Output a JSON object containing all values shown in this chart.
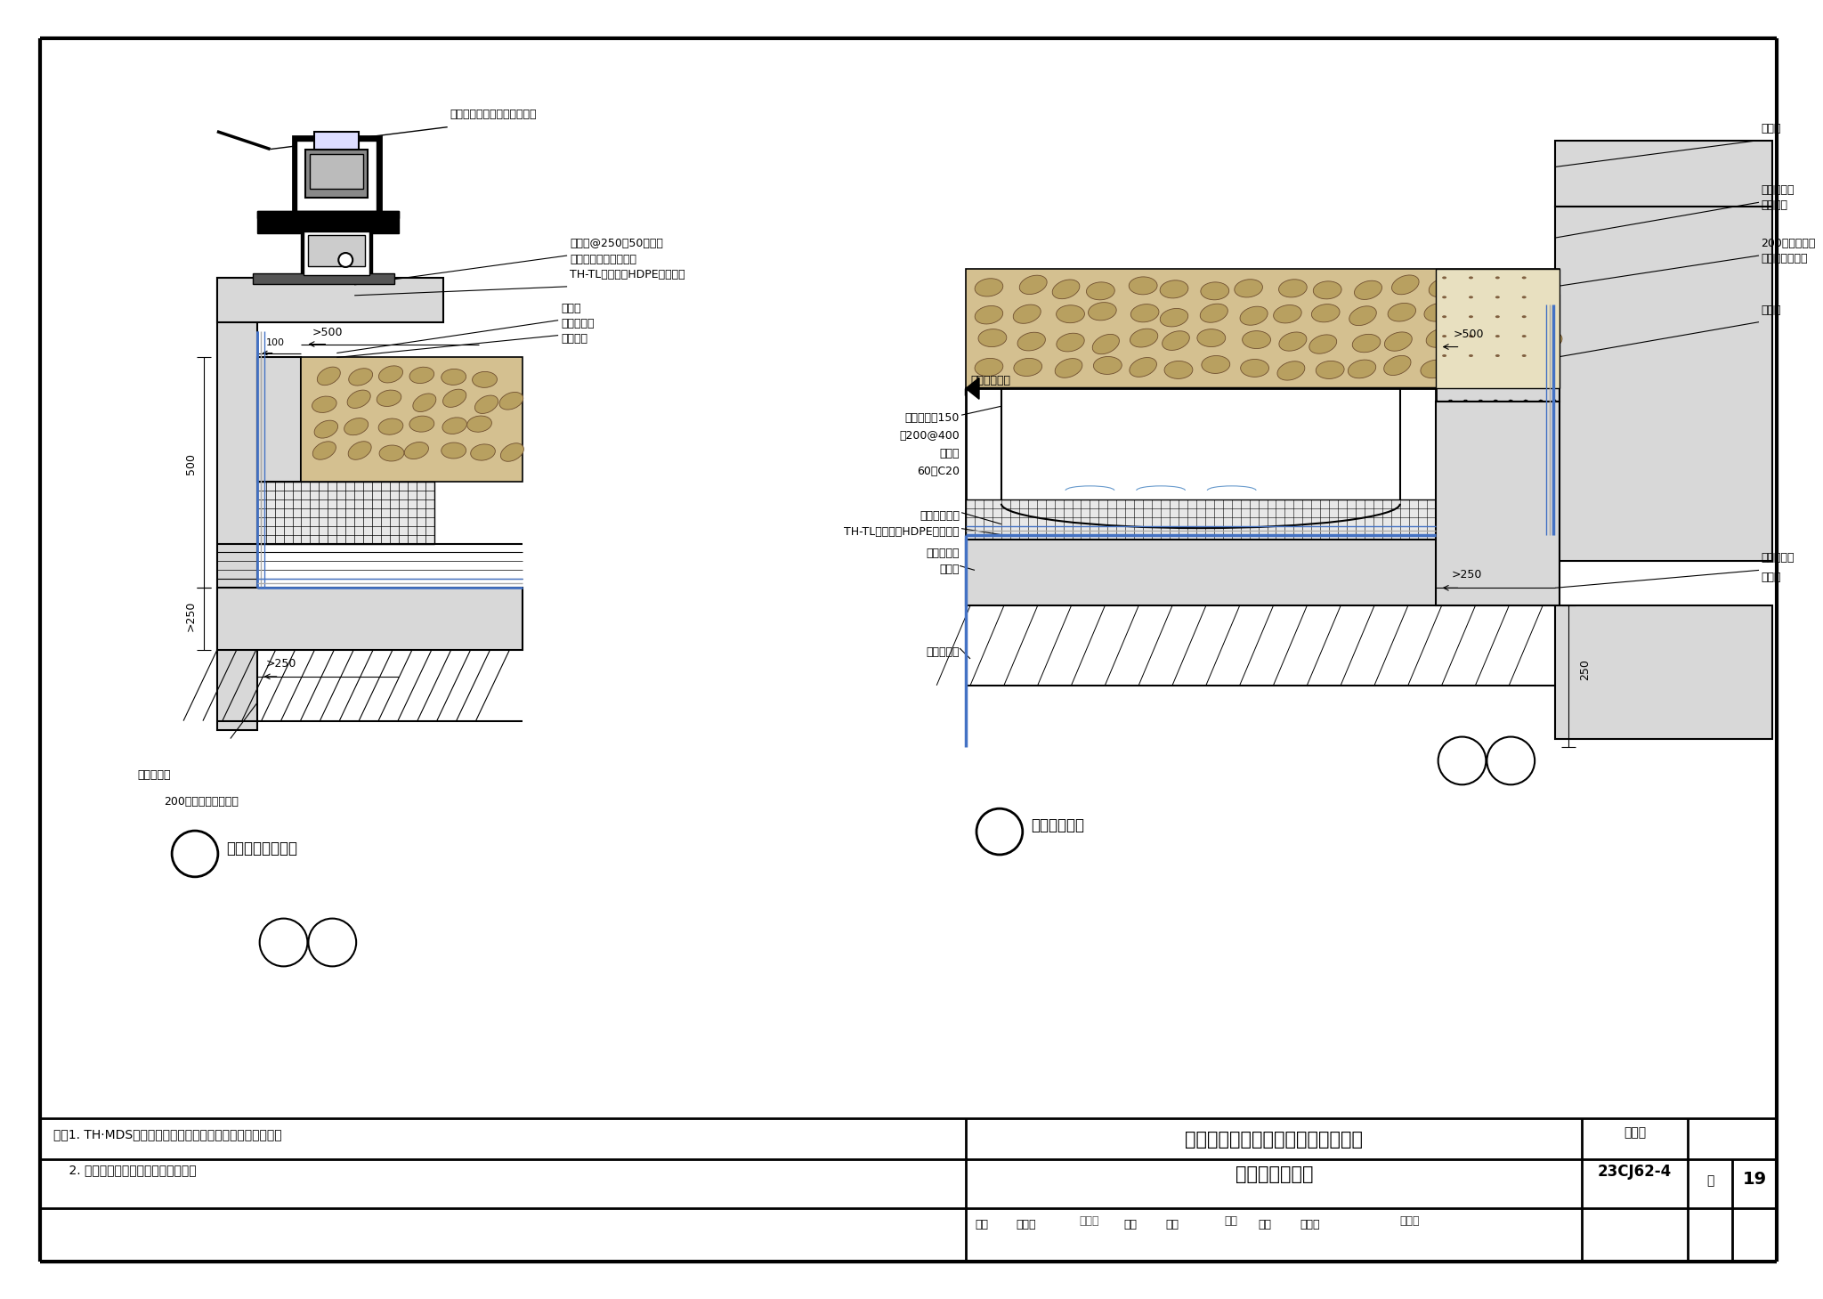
{
  "bg": "#ffffff",
  "lc": "#000000",
  "blue": "#4472c4",
  "gray_fill": "#cccccc",
  "gravel": "#c8b878",
  "title_line1": "种植顶板采光天窗防、排水构造做法",
  "title_line2": "及转角明沟排水",
  "atlas_label": "图集号",
  "atlas_num": "23CJ62-4",
  "page_label": "页",
  "page_num": "19",
  "note1": "注：1. TH·MDS排水系统设计及配件的设置见具体工程设计。",
  "note2": "    2. 排水沟构造做法见具体工程设计。",
  "d1_title": "种植顶板采光天窗",
  "d2_title": "转角明沟排水"
}
